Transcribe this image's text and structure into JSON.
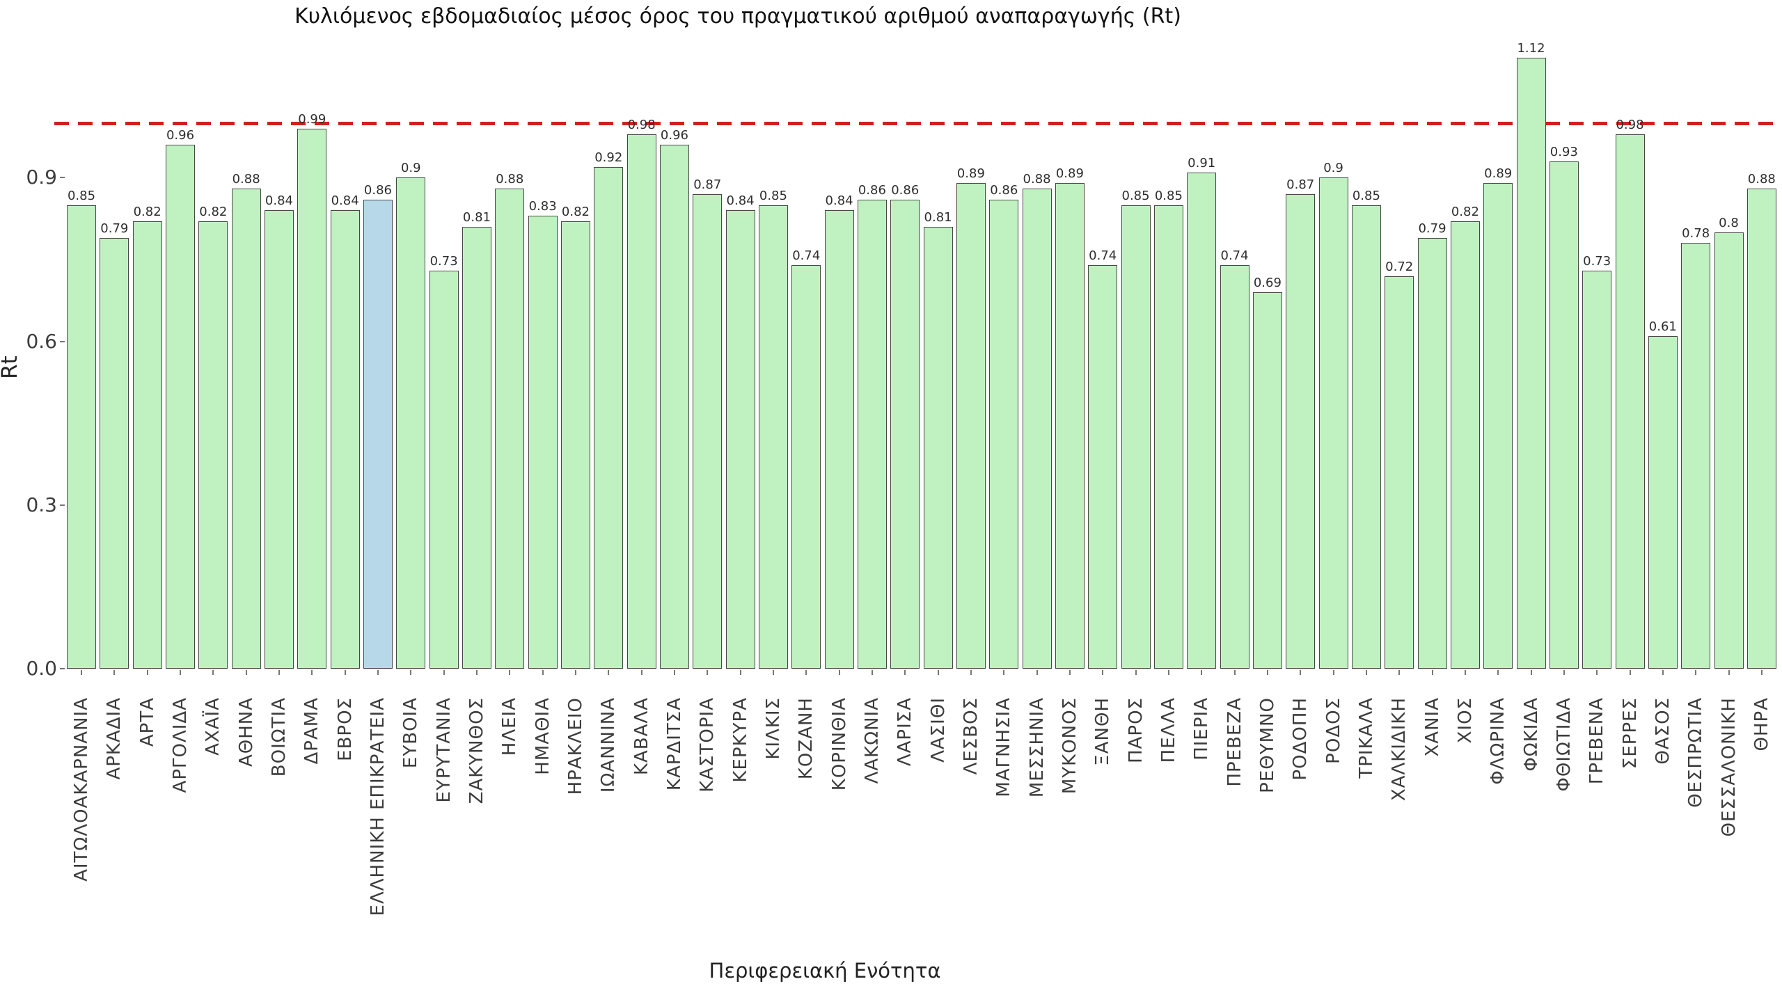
{
  "chart_data": {
    "type": "bar",
    "title": "Κυλιόμενος εβδομαδιαίος μέσος όρος του πραγματικού αριθμού αναπαραγωγής (Rt)",
    "xlabel": "Περιφερειακή Ενότητα",
    "ylabel": "Rt",
    "categories": [
      "ΑΙΤΩΛΟΑΚΑΡΝΑΝΙΑ",
      "ΑΡΚΑΔΙΑ",
      "ΑΡΤΑ",
      "ΑΡΓΟΛΙΔΑ",
      "ΑΧΑΪΑ",
      "ΑΘΗΝΑ",
      "ΒΟΙΩΤΙΑ",
      "ΔΡΑΜΑ",
      "ΕΒΡΟΣ",
      "ΕΛΛΗΝΙΚΗ ΕΠΙΚΡΑΤΕΙΑ",
      "ΕΥΒΟΙΑ",
      "ΕΥΡΥΤΑΝΙΑ",
      "ΖΑΚΥΝΘΟΣ",
      "ΗΛΕΙΑ",
      "ΗΜΑΘΙΑ",
      "ΗΡΑΚΛΕΙΟ",
      "ΙΩΑΝΝΙΝΑ",
      "ΚΑΒΑΛΑ",
      "ΚΑΡΔΙΤΣΑ",
      "ΚΑΣΤΟΡΙΑ",
      "ΚΕΡΚΥΡΑ",
      "ΚΙΛΚΙΣ",
      "ΚΟΖΑΝΗ",
      "ΚΟΡΙΝΘΙΑ",
      "ΛΑΚΩΝΙΑ",
      "ΛΑΡΙΣΑ",
      "ΛΑΣΙΘΙ",
      "ΛΕΣΒΟΣ",
      "ΜΑΓΝΗΣΙΑ",
      "ΜΕΣΣΗΝΙΑ",
      "ΜΥΚΟΝΟΣ",
      "ΞΑΝΘΗ",
      "ΠΑΡΟΣ",
      "ΠΕΛΛΑ",
      "ΠΙΕΡΙΑ",
      "ΠΡΕΒΕΖΑ",
      "ΡΕΘΥΜΝΟ",
      "ΡΟΔΟΠΗ",
      "ΡΟΔΟΣ",
      "ΤΡΙΚΑΛΑ",
      "ΧΑΛΚΙΔΙΚΗ",
      "ΧΑΝΙΑ",
      "ΧΙΟΣ",
      "ΦΛΩΡΙΝΑ",
      "ΦΩΚΙΔΑ",
      "ΦΘΙΩΤΙΔΑ",
      "ΓΡΕΒΕΝΑ",
      "ΣΕΡΡΕΣ",
      "ΘΑΣΟΣ",
      "ΘΕΣΠΡΩΤΙΑ",
      "ΘΕΣΣΑΛΟΝΙΚΗ",
      "ΘΗΡΑ"
    ],
    "values": [
      0.85,
      0.79,
      0.82,
      0.96,
      0.82,
      0.88,
      0.84,
      0.99,
      0.84,
      0.86,
      0.9,
      0.73,
      0.81,
      0.88,
      0.83,
      0.82,
      0.92,
      0.98,
      0.96,
      0.87,
      0.84,
      0.85,
      0.74,
      0.84,
      0.86,
      0.86,
      0.81,
      0.89,
      0.86,
      0.88,
      0.89,
      0.74,
      0.85,
      0.85,
      0.91,
      0.74,
      0.69,
      0.87,
      0.9,
      0.85,
      0.72,
      0.79,
      0.82,
      0.89,
      1.12,
      0.93,
      0.73,
      0.98,
      0.61,
      0.78,
      0.8,
      0.88
    ],
    "highlight_category": "ΕΛΛΗΝΙΚΗ ΕΠΙΚΡΑΤΕΙΑ",
    "yticks": [
      0.0,
      0.3,
      0.6,
      0.9
    ],
    "ytick_labels": [
      "0.0",
      "0.3",
      "0.6",
      "0.9"
    ],
    "ylim": [
      0.0,
      1.22
    ],
    "threshold": 1.0,
    "grid": false,
    "legend": "none",
    "colors": {
      "bar_fill": "#c0f1c0",
      "highlight_fill": "#b6d8e8",
      "bar_edge": "#474747",
      "threshold_line": "#d22020",
      "tick_text": "#3d3d3d",
      "value_text": "#2e2e2e"
    }
  }
}
